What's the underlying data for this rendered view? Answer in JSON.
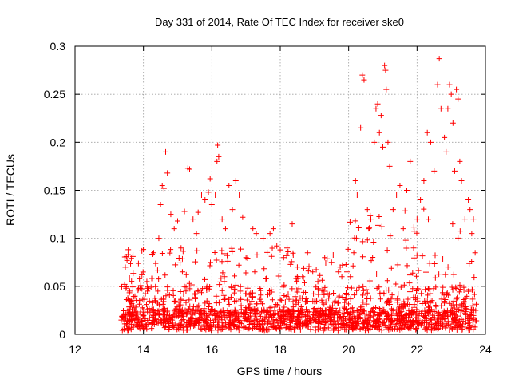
{
  "chart_data": {
    "type": "scatter",
    "title": "Day 331 of 2014, Rate Of TEC Index for receiver ske0",
    "xlabel": "GPS time / hours",
    "ylabel": "ROTI / TECUs",
    "xlim": [
      12,
      24
    ],
    "ylim": [
      0,
      0.3
    ],
    "x_ticks": [
      12,
      14,
      16,
      18,
      20,
      22,
      24
    ],
    "y_ticks": [
      0,
      0.05,
      0.1,
      0.15,
      0.2,
      0.25,
      0.3
    ],
    "x_tick_labels": [
      "12",
      "14",
      "16",
      "18",
      "20",
      "22",
      "24"
    ],
    "y_tick_labels": [
      "0",
      "0.05",
      "0.1",
      "0.15",
      "0.2",
      "0.25",
      "0.3"
    ],
    "grid": true,
    "marker": "+",
    "color": "#ff0000",
    "series": [
      {
        "name": "ROTI",
        "points": [
          [
            13.45,
            0.052
          ],
          [
            13.5,
            0.081
          ],
          [
            13.52,
            0.077
          ],
          [
            13.55,
            0.083
          ],
          [
            13.6,
            0.045
          ],
          [
            13.9,
            0.048
          ],
          [
            14.1,
            0.055
          ],
          [
            14.3,
            0.085
          ],
          [
            14.45,
            0.1
          ],
          [
            14.5,
            0.135
          ],
          [
            14.55,
            0.155
          ],
          [
            14.6,
            0.152
          ],
          [
            14.65,
            0.19
          ],
          [
            14.7,
            0.168
          ],
          [
            14.8,
            0.125
          ],
          [
            14.9,
            0.11
          ],
          [
            15.0,
            0.118
          ],
          [
            15.1,
            0.09
          ],
          [
            15.2,
            0.128
          ],
          [
            15.3,
            0.173
          ],
          [
            15.35,
            0.172
          ],
          [
            15.45,
            0.12
          ],
          [
            15.55,
            0.105
          ],
          [
            15.6,
            0.127
          ],
          [
            15.7,
            0.145
          ],
          [
            15.8,
            0.14
          ],
          [
            15.9,
            0.148
          ],
          [
            15.95,
            0.162
          ],
          [
            16.0,
            0.135
          ],
          [
            16.1,
            0.145
          ],
          [
            16.15,
            0.18
          ],
          [
            16.17,
            0.197
          ],
          [
            16.2,
            0.185
          ],
          [
            16.3,
            0.12
          ],
          [
            16.4,
            0.11
          ],
          [
            16.5,
            0.155
          ],
          [
            16.6,
            0.13
          ],
          [
            16.7,
            0.16
          ],
          [
            16.8,
            0.145
          ],
          [
            16.9,
            0.122
          ],
          [
            17.0,
            0.08
          ],
          [
            17.05,
            0.048
          ],
          [
            17.2,
            0.11
          ],
          [
            17.3,
            0.105
          ],
          [
            17.5,
            0.1
          ],
          [
            17.7,
            0.105
          ],
          [
            17.8,
            0.11
          ],
          [
            17.9,
            0.092
          ],
          [
            18.0,
            0.088
          ],
          [
            18.1,
            0.08
          ],
          [
            18.2,
            0.09
          ],
          [
            18.35,
            0.115
          ],
          [
            18.5,
            0.07
          ],
          [
            18.65,
            0.06
          ],
          [
            18.8,
            0.085
          ],
          [
            18.95,
            0.065
          ],
          [
            19.1,
            0.055
          ],
          [
            19.3,
            0.08
          ],
          [
            19.5,
            0.075
          ],
          [
            19.7,
            0.065
          ],
          [
            19.8,
            0.06
          ],
          [
            19.95,
            0.065
          ],
          [
            20.05,
            0.06
          ],
          [
            20.15,
            0.085
          ],
          [
            20.2,
            0.16
          ],
          [
            20.25,
            0.145
          ],
          [
            20.35,
            0.215
          ],
          [
            20.4,
            0.27
          ],
          [
            20.45,
            0.265
          ],
          [
            20.55,
            0.13
          ],
          [
            20.65,
            0.12
          ],
          [
            20.75,
            0.2
          ],
          [
            20.8,
            0.235
          ],
          [
            20.85,
            0.24
          ],
          [
            20.9,
            0.21
          ],
          [
            20.95,
            0.228
          ],
          [
            21.0,
            0.195
          ],
          [
            21.05,
            0.28
          ],
          [
            21.08,
            0.275
          ],
          [
            21.1,
            0.255
          ],
          [
            21.15,
            0.2
          ],
          [
            21.2,
            0.175
          ],
          [
            21.3,
            0.13
          ],
          [
            21.4,
            0.145
          ],
          [
            21.5,
            0.155
          ],
          [
            21.6,
            0.11
          ],
          [
            21.7,
            0.15
          ],
          [
            21.8,
            0.18
          ],
          [
            21.9,
            0.09
          ],
          [
            22.0,
            0.12
          ],
          [
            22.1,
            0.14
          ],
          [
            22.2,
            0.16
          ],
          [
            22.3,
            0.21
          ],
          [
            22.4,
            0.2
          ],
          [
            22.5,
            0.17
          ],
          [
            22.6,
            0.26
          ],
          [
            22.65,
            0.287
          ],
          [
            22.7,
            0.235
          ],
          [
            22.8,
            0.205
          ],
          [
            22.85,
            0.19
          ],
          [
            22.9,
            0.235
          ],
          [
            22.95,
            0.26
          ],
          [
            23.0,
            0.25
          ],
          [
            23.05,
            0.22
          ],
          [
            23.1,
            0.17
          ],
          [
            23.15,
            0.255
          ],
          [
            23.2,
            0.245
          ],
          [
            23.25,
            0.18
          ],
          [
            23.3,
            0.16
          ],
          [
            23.4,
            0.12
          ],
          [
            23.5,
            0.14
          ],
          [
            23.55,
            0.13
          ],
          [
            23.6,
            0.105
          ],
          [
            23.65,
            0.12
          ],
          [
            23.7,
            0.085
          ]
        ]
      }
    ]
  }
}
